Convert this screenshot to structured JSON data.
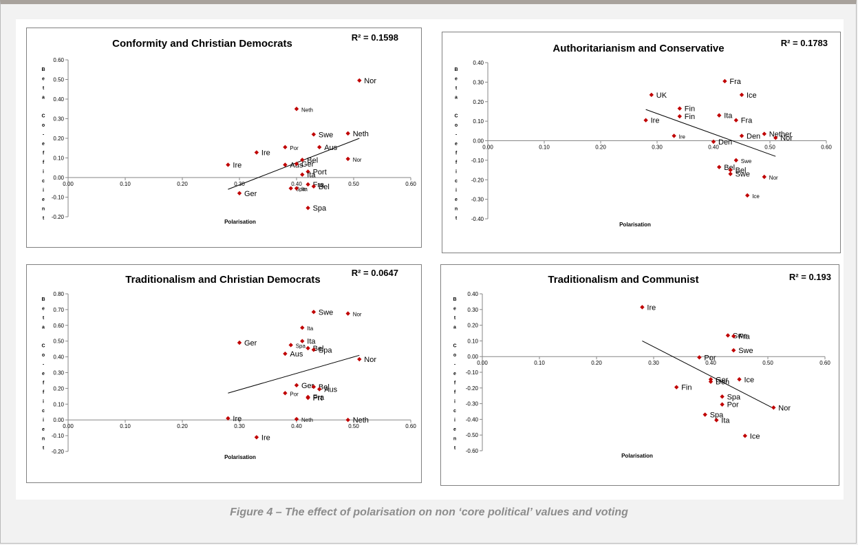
{
  "caption": "Figure 4 – The effect of polarisation on non ‘core political’ values and voting",
  "colors": {
    "marker": "#c00000",
    "trend": "#000000",
    "axis": "#868686"
  },
  "chart_data": [
    {
      "type": "scatter",
      "title": "Conformity and Christian Democrats",
      "r2": "R² = 0.1598",
      "xlabel": "Polarisation",
      "ylabel": "Beta Co-efficient",
      "xlim": [
        0.0,
        0.6
      ],
      "ylim": [
        -0.2,
        0.6
      ],
      "xticks": [
        "0.00",
        "0.10",
        "0.20",
        "0.30",
        "0.40",
        "0.50",
        "0.60"
      ],
      "yticks": [
        "-0.20",
        "-0.10",
        "0.00",
        "0.10",
        "0.20",
        "0.30",
        "0.40",
        "0.50",
        "0.60"
      ],
      "trend": [
        [
          0.28,
          -0.06
        ],
        [
          0.51,
          0.2
        ]
      ],
      "points": [
        {
          "label": "Nor",
          "x": 0.51,
          "y": 0.495
        },
        {
          "label": "Neth",
          "x": 0.4,
          "y": 0.35,
          "small": true
        },
        {
          "label": "Swe",
          "x": 0.43,
          "y": 0.22
        },
        {
          "label": "Neth",
          "x": 0.49,
          "y": 0.225
        },
        {
          "label": "Por",
          "x": 0.38,
          "y": 0.155,
          "small": true
        },
        {
          "label": "Aus",
          "x": 0.44,
          "y": 0.155
        },
        {
          "label": "Ire",
          "x": 0.33,
          "y": 0.128
        },
        {
          "label": "Nor",
          "x": 0.49,
          "y": 0.095,
          "small": true
        },
        {
          "label": "Bel",
          "x": 0.41,
          "y": 0.09
        },
        {
          "label": "Ire",
          "x": 0.28,
          "y": 0.065
        },
        {
          "label": "Aus",
          "x": 0.38,
          "y": 0.065
        },
        {
          "label": "Ger",
          "x": 0.4,
          "y": 0.07
        },
        {
          "label": "Port",
          "x": 0.42,
          "y": 0.03
        },
        {
          "label": "Ita",
          "x": 0.41,
          "y": 0.015
        },
        {
          "label": "Fra",
          "x": 0.42,
          "y": -0.035
        },
        {
          "label": "Bel",
          "x": 0.43,
          "y": -0.045
        },
        {
          "label": "Spa",
          "x": 0.39,
          "y": -0.055,
          "small": true
        },
        {
          "label": "Ita",
          "x": 0.4,
          "y": -0.055,
          "small": true
        },
        {
          "label": "Ger",
          "x": 0.3,
          "y": -0.08
        },
        {
          "label": "Spa",
          "x": 0.42,
          "y": -0.155
        }
      ]
    },
    {
      "type": "scatter",
      "title": "Authoritarianism and Conservative",
      "r2": "R² = 0.1783",
      "xlabel": "Polarisation",
      "ylabel": "Beta Co-efficient",
      "xlim": [
        0.0,
        0.6
      ],
      "ylim": [
        -0.4,
        0.4
      ],
      "xticks": [
        "0.00",
        "0.10",
        "0.20",
        "0.30",
        "0.40",
        "0.50",
        "0.60"
      ],
      "yticks": [
        "-0.40",
        "-0.30",
        "-0.20",
        "-0.10",
        "0.00",
        "0.10",
        "0.20",
        "0.30",
        "0.40"
      ],
      "trend": [
        [
          0.28,
          0.16
        ],
        [
          0.51,
          -0.08
        ]
      ],
      "points": [
        {
          "label": "Fra",
          "x": 0.42,
          "y": 0.305
        },
        {
          "label": "UK",
          "x": 0.29,
          "y": 0.235
        },
        {
          "label": "Ice",
          "x": 0.45,
          "y": 0.235
        },
        {
          "label": "Fin",
          "x": 0.34,
          "y": 0.165
        },
        {
          "label": "Fin",
          "x": 0.34,
          "y": 0.125
        },
        {
          "label": "Ita",
          "x": 0.41,
          "y": 0.13
        },
        {
          "label": "Fra",
          "x": 0.44,
          "y": 0.105
        },
        {
          "label": "Ire",
          "x": 0.28,
          "y": 0.105
        },
        {
          "label": "Ire",
          "x": 0.33,
          "y": 0.025,
          "small": true
        },
        {
          "label": "Nether",
          "x": 0.49,
          "y": 0.035
        },
        {
          "label": "Den",
          "x": 0.45,
          "y": 0.025
        },
        {
          "label": "Nor",
          "x": 0.51,
          "y": 0.015
        },
        {
          "label": "Den",
          "x": 0.4,
          "y": -0.005
        },
        {
          "label": "Swe",
          "x": 0.44,
          "y": -0.1,
          "small": true
        },
        {
          "label": "Bel",
          "x": 0.41,
          "y": -0.135
        },
        {
          "label": "Bel",
          "x": 0.43,
          "y": -0.15
        },
        {
          "label": "Swe",
          "x": 0.43,
          "y": -0.17
        },
        {
          "label": "Nor",
          "x": 0.49,
          "y": -0.185,
          "small": true
        },
        {
          "label": "Ice",
          "x": 0.46,
          "y": -0.28,
          "small": true
        }
      ]
    },
    {
      "type": "scatter",
      "title": "Traditionalism and Christian Democrats",
      "r2": "R² = 0.0647",
      "xlabel": "Polarisation",
      "ylabel": "Beta Co-efficient",
      "xlim": [
        0.0,
        0.6
      ],
      "ylim": [
        -0.2,
        0.8
      ],
      "xticks": [
        "0.00",
        "0.10",
        "0.20",
        "0.30",
        "0.40",
        "0.50",
        "0.60"
      ],
      "yticks": [
        "-0.20",
        "-0.10",
        "0.00",
        "0.10",
        "0.20",
        "0.30",
        "0.40",
        "0.50",
        "0.60",
        "0.70",
        "0.80"
      ],
      "trend": [
        [
          0.28,
          0.17
        ],
        [
          0.51,
          0.41
        ]
      ],
      "points": [
        {
          "label": "Swe",
          "x": 0.43,
          "y": 0.685
        },
        {
          "label": "Nor",
          "x": 0.49,
          "y": 0.675,
          "small": true
        },
        {
          "label": "Ita",
          "x": 0.41,
          "y": 0.585,
          "small": true
        },
        {
          "label": "Ger",
          "x": 0.3,
          "y": 0.49
        },
        {
          "label": "Ita",
          "x": 0.41,
          "y": 0.5
        },
        {
          "label": "Spa",
          "x": 0.39,
          "y": 0.475,
          "small": true
        },
        {
          "label": "Bel",
          "x": 0.42,
          "y": 0.455
        },
        {
          "label": "Spa",
          "x": 0.43,
          "y": 0.445
        },
        {
          "label": "Aus",
          "x": 0.38,
          "y": 0.42
        },
        {
          "label": "Nor",
          "x": 0.51,
          "y": 0.385
        },
        {
          "label": "Ger",
          "x": 0.4,
          "y": 0.22
        },
        {
          "label": "Bel",
          "x": 0.43,
          "y": 0.21
        },
        {
          "label": "Aus",
          "x": 0.44,
          "y": 0.195
        },
        {
          "label": "Por",
          "x": 0.38,
          "y": 0.17,
          "small": true
        },
        {
          "label": "Fra",
          "x": 0.42,
          "y": 0.145
        },
        {
          "label": "Prt",
          "x": 0.42,
          "y": 0.14
        },
        {
          "label": "Ire",
          "x": 0.28,
          "y": 0.01
        },
        {
          "label": "Neth",
          "x": 0.4,
          "y": 0.005,
          "small": true
        },
        {
          "label": "Neth",
          "x": 0.49,
          "y": 0.0
        },
        {
          "label": "Ire",
          "x": 0.33,
          "y": -0.11
        }
      ]
    },
    {
      "type": "scatter",
      "title": "Traditionalism and Communist",
      "r2": "R² = 0.193",
      "xlabel": "Polarisation",
      "ylabel": "Beta Co-efficient",
      "xlim": [
        0.0,
        0.6
      ],
      "ylim": [
        -0.6,
        0.4
      ],
      "xticks": [
        "0.00",
        "0.10",
        "0.20",
        "0.30",
        "0.40",
        "0.50",
        "0.60"
      ],
      "yticks": [
        "-0.60",
        "-0.50",
        "-0.40",
        "-0.30",
        "-0.20",
        "-0.10",
        "0.00",
        "0.10",
        "0.20",
        "0.30",
        "0.40"
      ],
      "trend": [
        [
          0.28,
          0.1
        ],
        [
          0.51,
          -0.33
        ]
      ],
      "points": [
        {
          "label": "Ire",
          "x": 0.28,
          "y": 0.315
        },
        {
          "label": "Swe",
          "x": 0.43,
          "y": 0.135
        },
        {
          "label": "Fra",
          "x": 0.44,
          "y": 0.13
        },
        {
          "label": "Swe",
          "x": 0.44,
          "y": 0.04
        },
        {
          "label": "Por",
          "x": 0.38,
          "y": -0.005
        },
        {
          "label": "Ger",
          "x": 0.4,
          "y": -0.145
        },
        {
          "label": "Den",
          "x": 0.4,
          "y": -0.16
        },
        {
          "label": "Ice",
          "x": 0.45,
          "y": -0.145
        },
        {
          "label": "Fin",
          "x": 0.34,
          "y": -0.195
        },
        {
          "label": "Spa",
          "x": 0.42,
          "y": -0.255
        },
        {
          "label": "Por",
          "x": 0.42,
          "y": -0.305
        },
        {
          "label": "Nor",
          "x": 0.51,
          "y": -0.325
        },
        {
          "label": "Spa",
          "x": 0.39,
          "y": -0.37
        },
        {
          "label": "Ita",
          "x": 0.41,
          "y": -0.405
        },
        {
          "label": "Ice",
          "x": 0.46,
          "y": -0.505
        }
      ]
    }
  ]
}
